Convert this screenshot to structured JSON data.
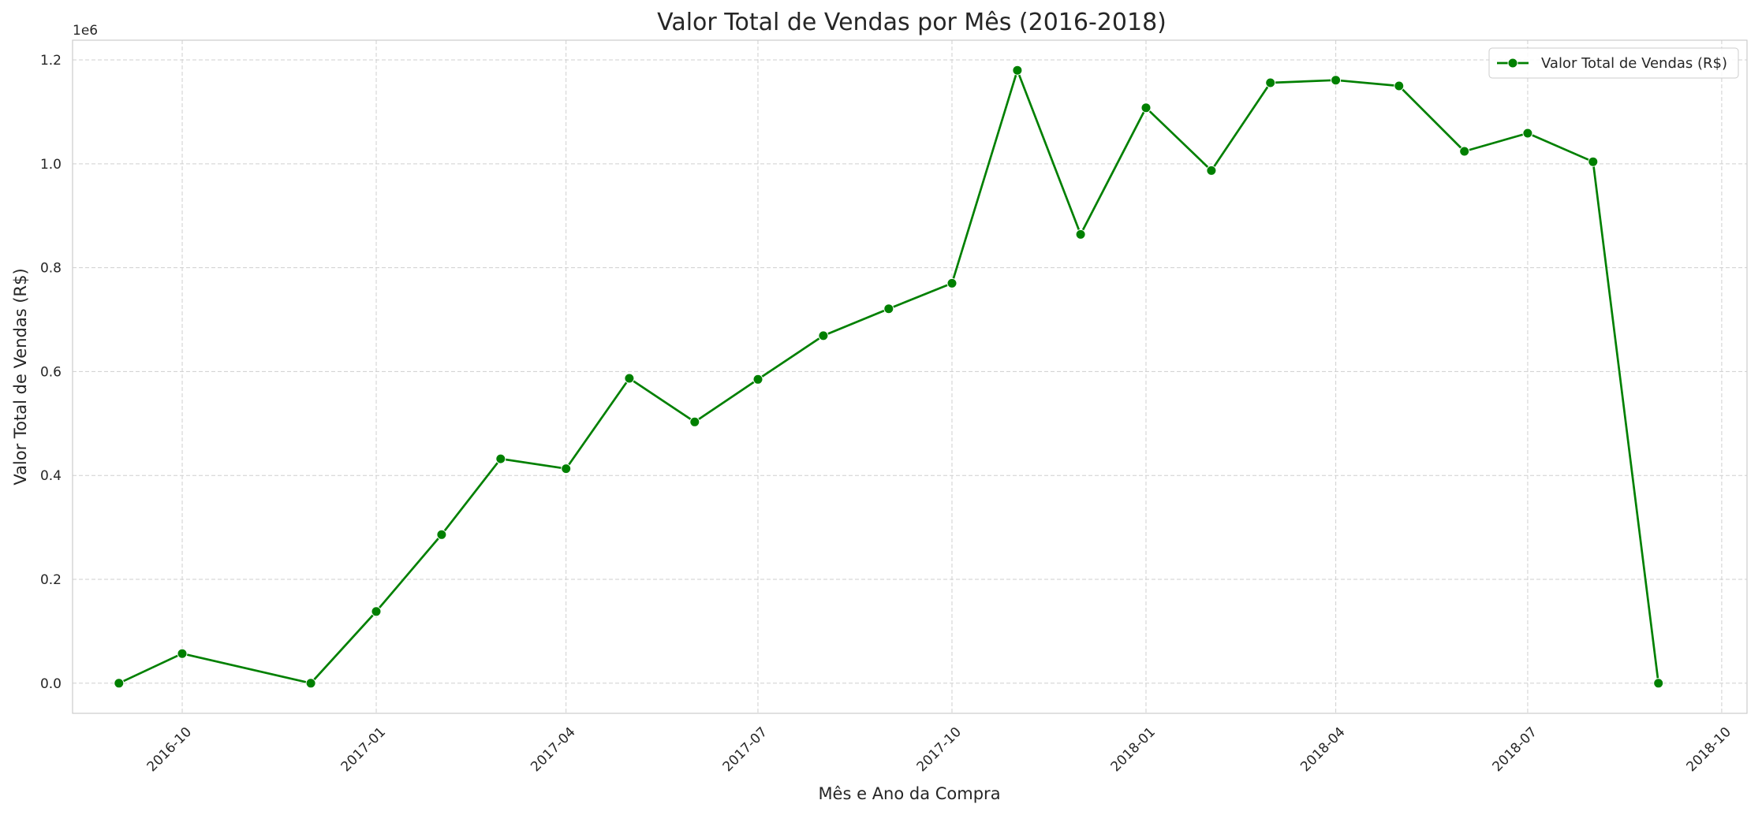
{
  "chart_data": {
    "type": "line",
    "title": "Valor Total de Vendas por Mês (2016-2018)",
    "xlabel": "Mês e Ano da Compra",
    "ylabel": "Valor Total de Vendas (R$)",
    "y_offset_label": "1e6",
    "y_offset_multiplier": 1000000,
    "ylim": [
      -58000,
      1238000
    ],
    "xlim": [
      "2016-08-10",
      "2018-10-13"
    ],
    "grid": true,
    "legend_position": "top-right",
    "x_ticks": [
      "2016-10",
      "2017-01",
      "2017-04",
      "2017-07",
      "2017-10",
      "2018-01",
      "2018-04",
      "2018-07",
      "2018-10"
    ],
    "y_ticks": [
      "0.0",
      "0.2",
      "0.4",
      "0.6",
      "0.8",
      "1.0",
      "1.2"
    ],
    "y_tick_values": [
      0,
      200000,
      400000,
      600000,
      800000,
      1000000,
      1200000
    ],
    "series": [
      {
        "name": "Valor Total de Vendas (R$)",
        "color": "#008000",
        "marker": "circle",
        "points": [
          {
            "x": "2016-09-01",
            "y": 0
          },
          {
            "x": "2016-10-01",
            "y": 57000
          },
          {
            "x": "2016-12-01",
            "y": 0
          },
          {
            "x": "2017-01-01",
            "y": 138000
          },
          {
            "x": "2017-02-01",
            "y": 286000
          },
          {
            "x": "2017-03-01",
            "y": 432000
          },
          {
            "x": "2017-04-01",
            "y": 413000
          },
          {
            "x": "2017-05-01",
            "y": 587000
          },
          {
            "x": "2017-06-01",
            "y": 503000
          },
          {
            "x": "2017-07-01",
            "y": 585000
          },
          {
            "x": "2017-08-01",
            "y": 669000
          },
          {
            "x": "2017-09-01",
            "y": 721000
          },
          {
            "x": "2017-10-01",
            "y": 770000
          },
          {
            "x": "2017-11-01",
            "y": 1180000
          },
          {
            "x": "2017-12-01",
            "y": 864000
          },
          {
            "x": "2018-01-01",
            "y": 1108000
          },
          {
            "x": "2018-02-01",
            "y": 987000
          },
          {
            "x": "2018-03-01",
            "y": 1156000
          },
          {
            "x": "2018-04-01",
            "y": 1161000
          },
          {
            "x": "2018-05-01",
            "y": 1150000
          },
          {
            "x": "2018-06-01",
            "y": 1024000
          },
          {
            "x": "2018-07-01",
            "y": 1059000
          },
          {
            "x": "2018-08-01",
            "y": 1004000
          },
          {
            "x": "2018-09-01",
            "y": 0
          }
        ]
      }
    ]
  }
}
